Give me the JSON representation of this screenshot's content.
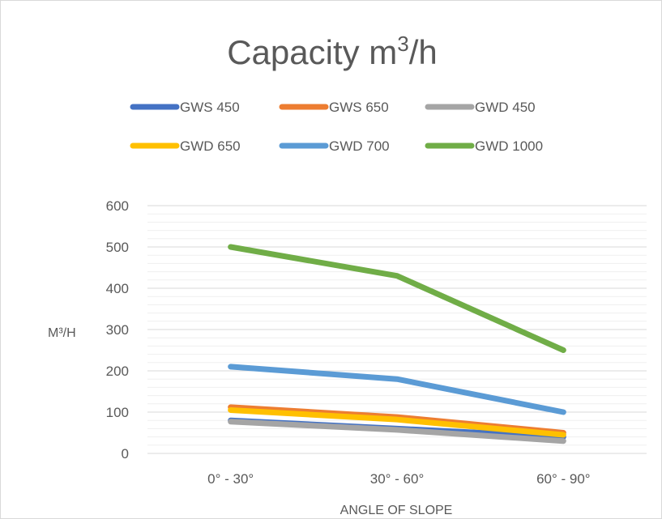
{
  "chart_data": {
    "type": "line",
    "title_main": "Capacity m",
    "title_sup": "3",
    "title_tail": "/h",
    "xlabel": "ANGLE OF SLOPE",
    "ylabel": "M³/H",
    "categories": [
      "0° - 30°",
      "30° - 60°",
      "60° - 90°"
    ],
    "ylim": [
      0,
      600
    ],
    "yticks": [
      0,
      100,
      200,
      300,
      400,
      500,
      600
    ],
    "minor_grid_step": 20,
    "grid": true,
    "legend_position": "top",
    "series": [
      {
        "name": "GWS 450",
        "color": "#4472C4",
        "values": [
          80,
          60,
          40
        ]
      },
      {
        "name": "GWS 650",
        "color": "#ED7D31",
        "values": [
          112,
          88,
          50
        ]
      },
      {
        "name": "GWD 450",
        "color": "#A5A5A5",
        "values": [
          77,
          57,
          30
        ]
      },
      {
        "name": "GWD 650",
        "color": "#FFC000",
        "values": [
          105,
          82,
          45
        ]
      },
      {
        "name": "GWD 700",
        "color": "#5B9BD5",
        "values": [
          210,
          180,
          100
        ]
      },
      {
        "name": "GWD 1000",
        "color": "#70AD47",
        "values": [
          500,
          430,
          250
        ]
      }
    ]
  }
}
